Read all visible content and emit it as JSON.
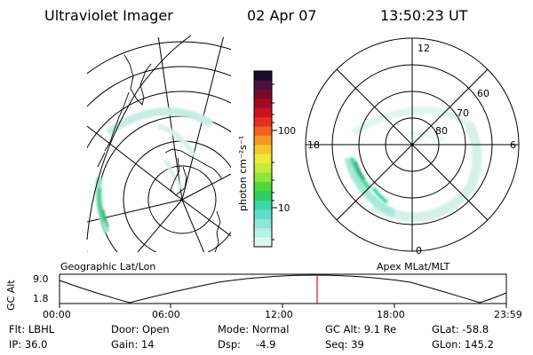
{
  "header": {
    "instrument": "Ultraviolet Imager",
    "date": "02 Apr 07",
    "time": "13:50:23 UT"
  },
  "geo_panel": {
    "label": "Geographic Lat/Lon"
  },
  "apex_panel": {
    "label": "Apex MLat/MLT",
    "mlt_labels": [
      "12",
      "18",
      "6",
      "0"
    ],
    "lat_labels": [
      "60",
      "70",
      "80"
    ]
  },
  "colorbar": {
    "label": "photon cm⁻²s⁻¹",
    "ticks": [
      "100",
      "10"
    ],
    "colors": [
      "#1a0a2e",
      "#4a1040",
      "#7a0a25",
      "#a30a1f",
      "#c81420",
      "#e3301c",
      "#f2621c",
      "#f79820",
      "#f4c82b",
      "#eaea3a",
      "#c5ec3b",
      "#8fe43a",
      "#4fd83c",
      "#2ecc64",
      "#3cd6a8",
      "#62dcc6",
      "#8fe5d6",
      "#b9efe5",
      "#dff7f2"
    ]
  },
  "orbit_plot": {
    "ylabel": "GC Alt",
    "yticks": [
      "9.0",
      "1.8"
    ],
    "xticks": [
      "00:00",
      "06:00",
      "12:00",
      "18:00",
      "23:59"
    ],
    "current_time_fraction": 0.5766,
    "marker_color": "#e01010"
  },
  "status": {
    "flt": "Flt: LBHL",
    "ip": "IP: 36.0",
    "door": "Door: Open",
    "gain": "Gain: 14",
    "mode": "Mode: Normal",
    "dsp": "Dsp:",
    "dsp_value": "-4.9",
    "gc_alt": "GC Alt: 9.1 Re",
    "seq": "Seq: 39",
    "glat": "GLat: -58.8",
    "glon": "GLon: 145.2"
  }
}
